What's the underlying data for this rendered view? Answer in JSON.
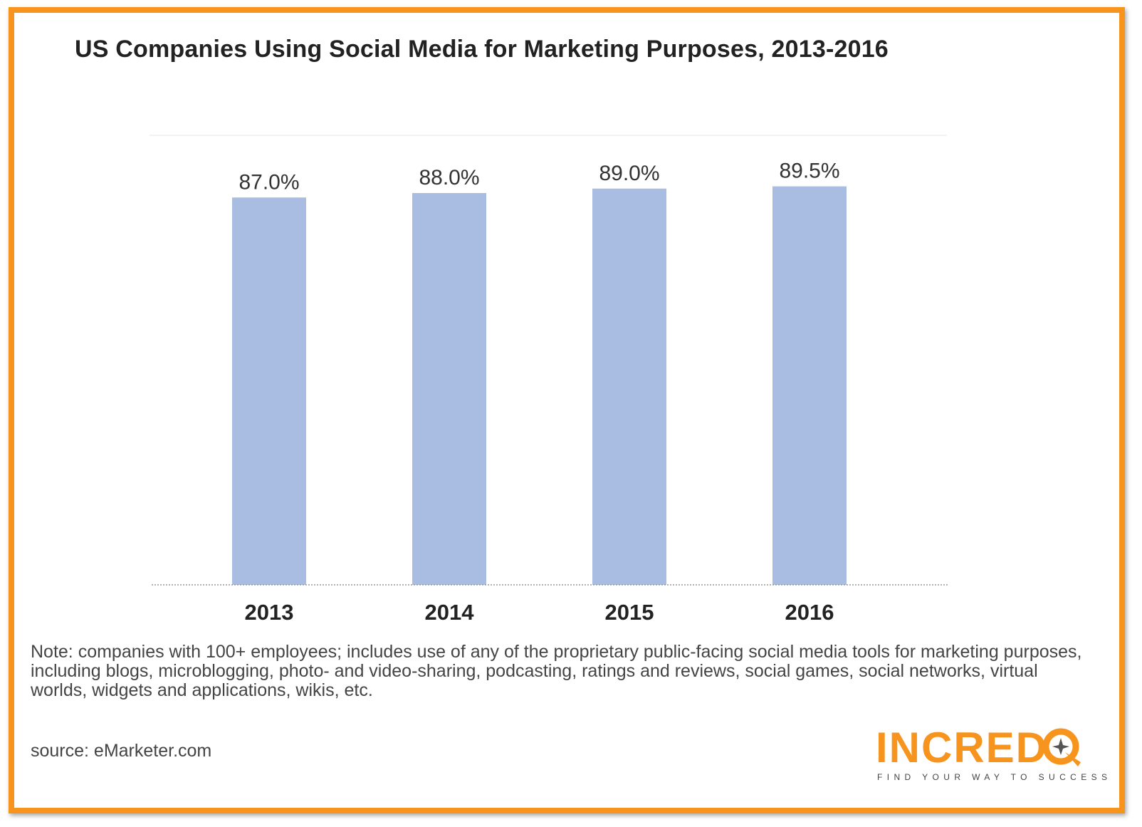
{
  "title": "US Companies Using Social Media for Marketing Purposes, 2013-2016",
  "note": "Note: companies with 100+ employees; includes use of any of the proprietary public-facing social media tools for marketing purposes, including blogs, microblogging, photo- and video-sharing, podcasting, ratings and reviews, social games, social networks, virtual worlds, widgets and applications, wikis, etc.",
  "source": "source: eMarketer.com",
  "logo": {
    "text": "INCRED",
    "tagline": "FIND YOUR WAY TO SUCCESS",
    "icon": "compass-icon"
  },
  "colors": {
    "frame": "#F7941D",
    "bar": "#A9BDE3",
    "logo_accent": "#F7941D"
  },
  "chart_data": {
    "type": "bar",
    "title": "US Companies Using Social Media for Marketing Purposes, 2013-2016",
    "categories": [
      "2013",
      "2014",
      "2015",
      "2016"
    ],
    "values": [
      87.0,
      88.0,
      89.0,
      89.5
    ],
    "value_labels": [
      "87.0%",
      "88.0%",
      "89.0%",
      "89.5%"
    ],
    "xlabel": "",
    "ylabel": "",
    "ylim": [
      0,
      100
    ],
    "grid": false,
    "legend": "none"
  }
}
